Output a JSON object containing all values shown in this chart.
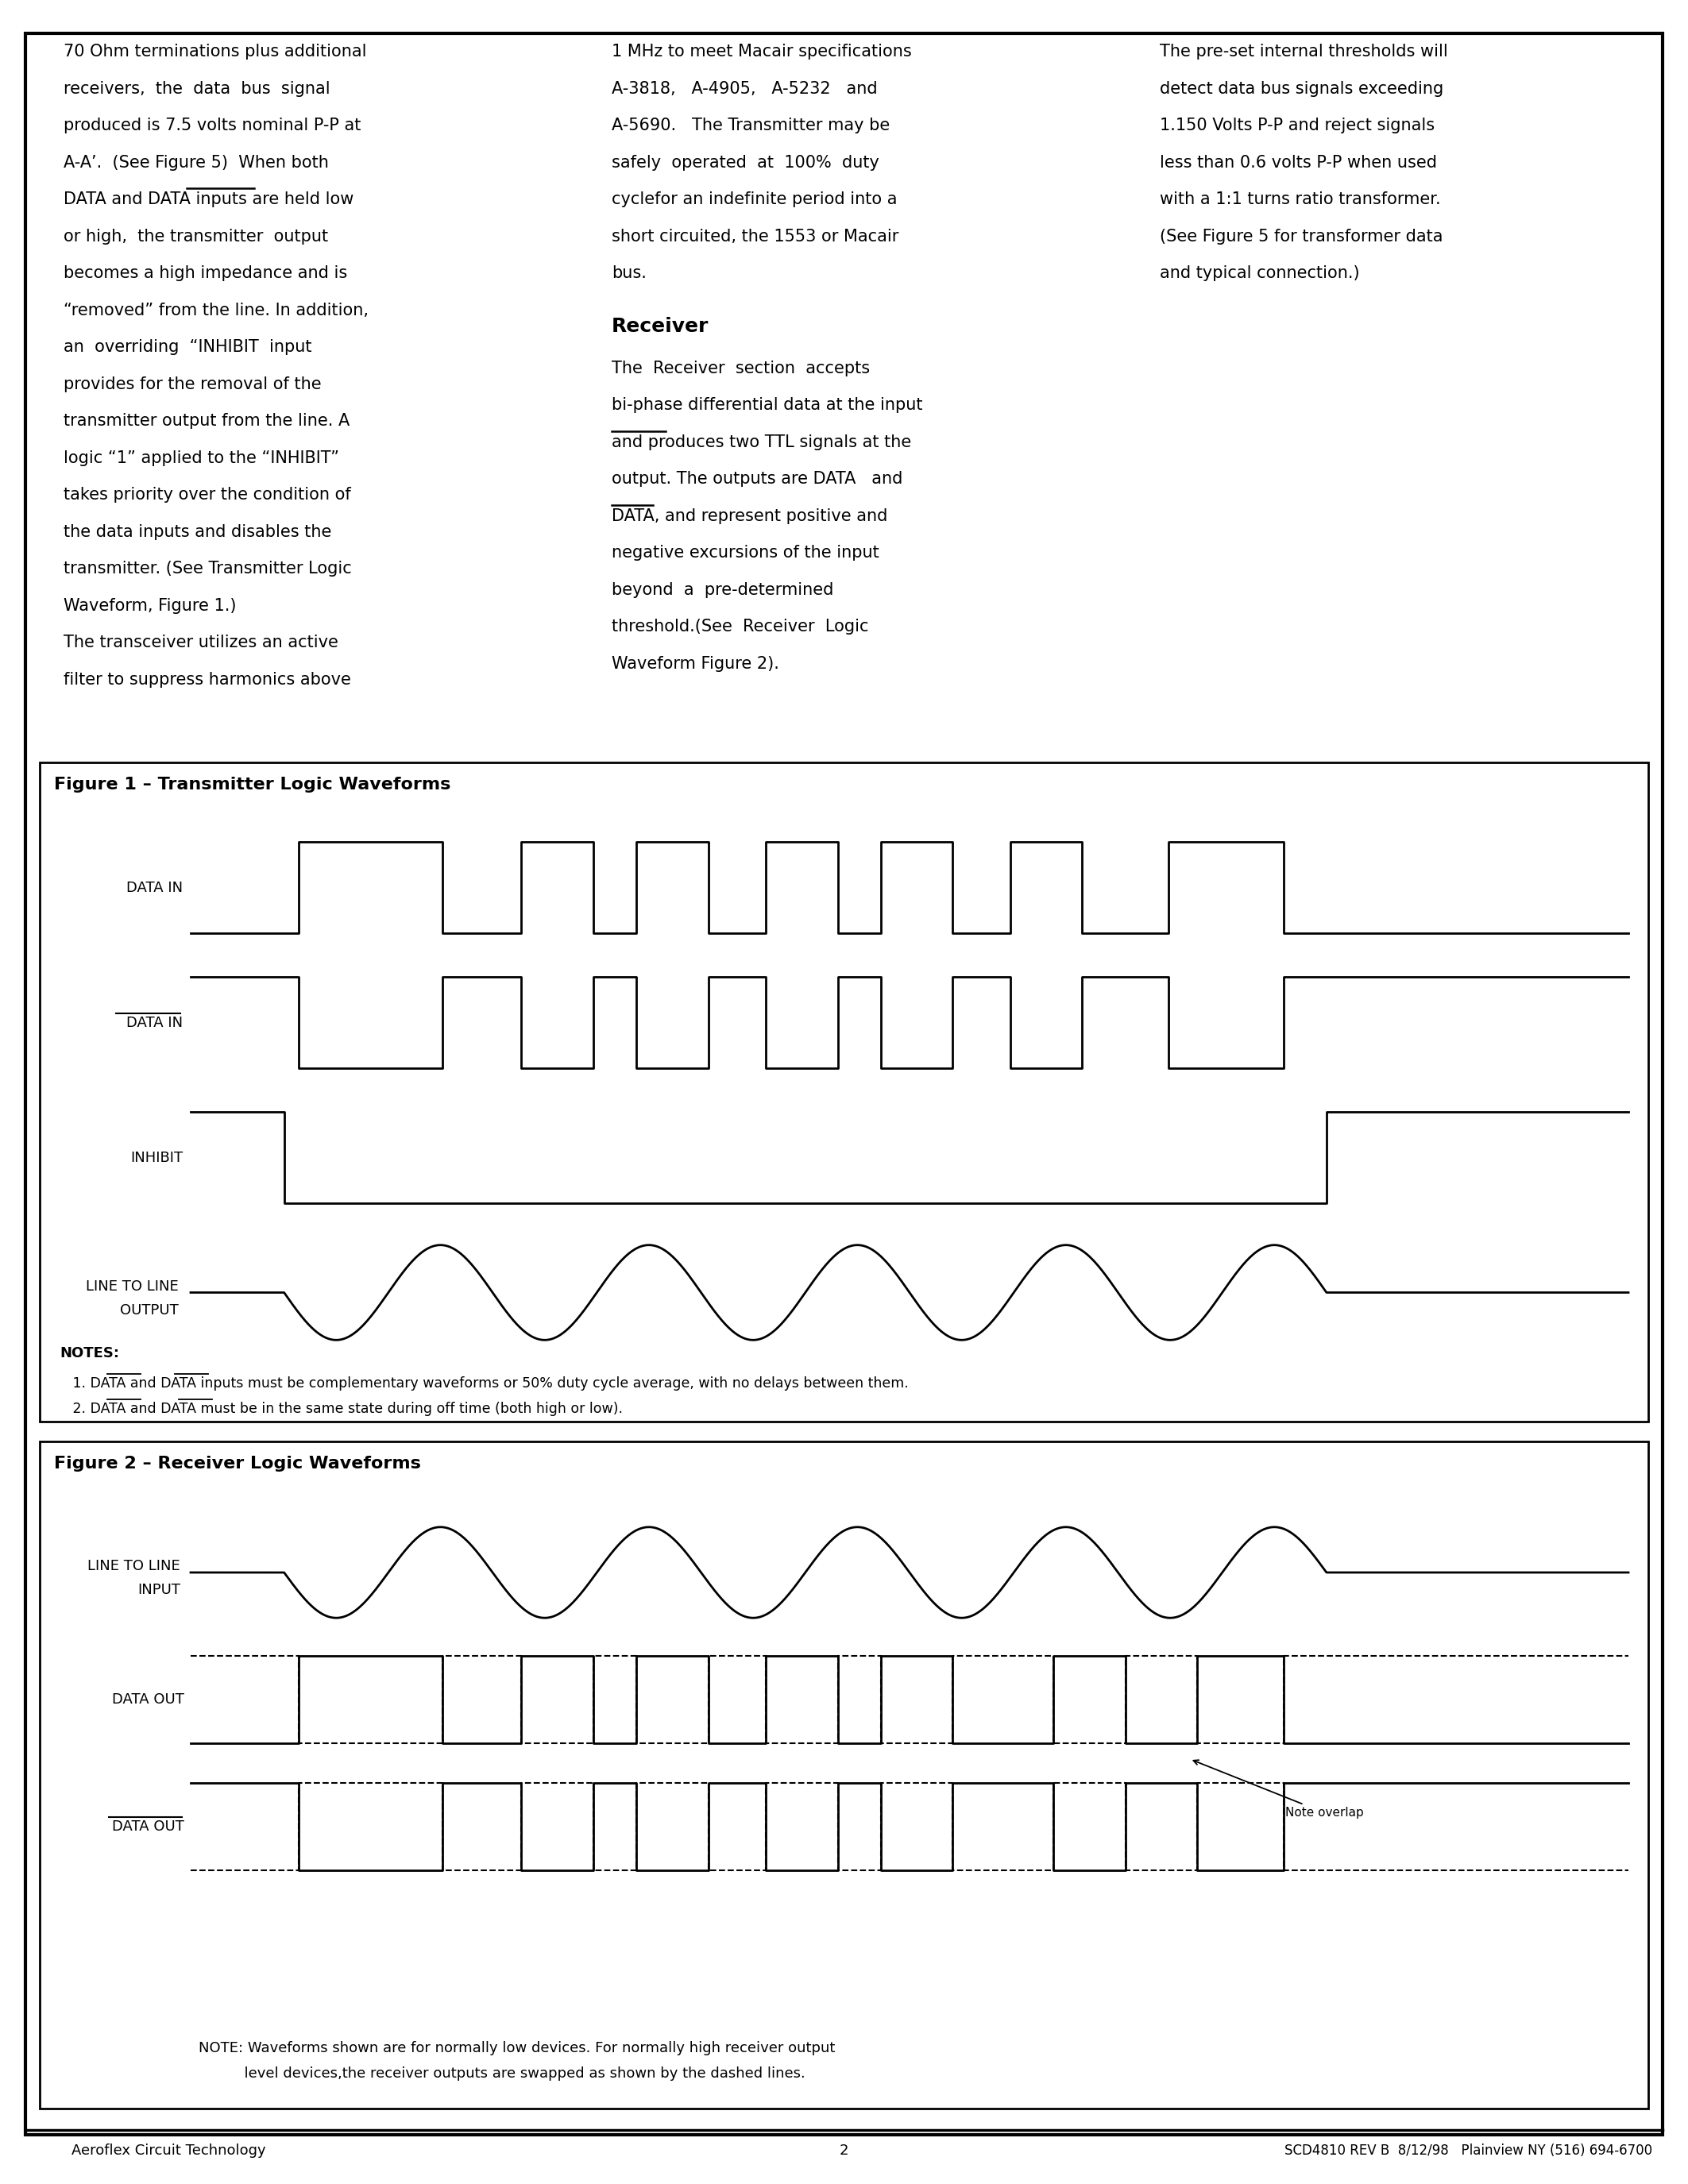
{
  "page_bg": "#ffffff",
  "footer_left": "Aeroflex Circuit Technology",
  "footer_center": "2",
  "footer_right": "SCD4810 REV B  8/12/98   Plainview NY (516) 694-6700",
  "fig1_title": "Figure 1 – Transmitter Logic Waveforms",
  "fig2_title": "Figure 2 – Receiver Logic Waveforms",
  "col1_lines": [
    "70 Ohm terminations plus additional",
    "receivers,  the  data  bus  signal",
    "produced is 7.5 volts nominal P-P at",
    "A-A’.  (See Figure 5)  When both",
    "DATA and DATA inputs are held low",
    "or high,  the transmitter  output",
    "becomes a high impedance and is",
    "“removed” from the line. In addition,",
    "an  overriding  “INHIBIT  input",
    "provides for the removal of the",
    "transmitter output from the line. A",
    "logic “1” applied to the “INHIBIT”",
    "takes priority over the condition of",
    "the data inputs and disables the",
    "transmitter. (See Transmitter Logic",
    "Waveform, Figure 1.)",
    "The transceiver utilizes an active",
    "filter to suppress harmonics above"
  ],
  "col2_lines_p1": [
    "1 MHz to meet Macair specifications",
    "A-3818,   A-4905,   A-5232   and",
    "A-5690.   The Transmitter may be",
    "safely  operated  at  100%  duty",
    "cyclefor an indefinite period into a",
    "short circuited, the 1553 or Macair",
    "bus."
  ],
  "col2_receiver_title": "Receiver",
  "col2_lines_p2": [
    "The  Receiver  section  accepts",
    "bi-phase differential data at the input",
    "and produces two TTL signals at the",
    "output. The outputs are DATA   and",
    "DATA, and represent positive and",
    "negative excursions of the input",
    "beyond  a  pre-determined",
    "threshold.(See  Receiver  Logic",
    "Waveform Figure 2)."
  ],
  "col3_lines": [
    "The pre-set internal thresholds will",
    "detect data bus signals exceeding",
    "1.150 Volts P-P and reject signals",
    "less than 0.6 volts P-P when used",
    "with a 1:1 turns ratio transformer.",
    "(See Figure 5 for transformer data",
    "and typical connection.)"
  ],
  "notes_fig1_line1": "NOTES:",
  "notes_fig1_line2": "   1. DATA and DATA inputs must be complementary waveforms or 50% duty cycle average, with no delays between them.",
  "notes_fig1_line3": "   2. DATA and DATA must be in the same state during off time (both high or low).",
  "note_fig2": "NOTE: Waveforms shown are for normally low devices. For normally high receiver output",
  "note_fig2_2": "          level devices,the receiver outputs are swapped as shown by the dashed lines."
}
